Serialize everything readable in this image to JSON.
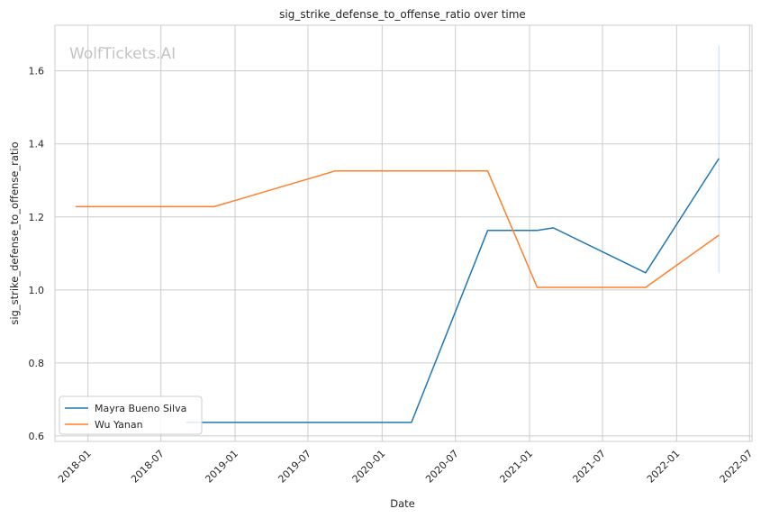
{
  "chart_data": {
    "type": "line",
    "title": "sig_strike_defense_to_offense_ratio over time",
    "xlabel": "Date",
    "ylabel": "sig_strike_defense_to_offense_ratio",
    "watermark": "WolfTickets.AI",
    "xlim": [
      "2017-10-11",
      "2022-07-07"
    ],
    "ylim": [
      0.585,
      1.725
    ],
    "x_ticks": [
      "2018-01",
      "2018-07",
      "2019-01",
      "2019-07",
      "2020-01",
      "2020-07",
      "2021-01",
      "2021-07",
      "2022-01",
      "2022-07"
    ],
    "y_ticks": [
      0.6,
      0.8,
      1.0,
      1.2,
      1.4,
      1.6
    ],
    "y_tick_labels": [
      "0.6",
      "0.8",
      "1.0",
      "1.2",
      "1.4",
      "1.6"
    ],
    "grid": true,
    "legend_position": "lower-left",
    "series": [
      {
        "name": "Mayra Bueno Silva",
        "color": "#1f77b4",
        "points": [
          [
            "2018-09-01",
            0.637
          ],
          [
            "2020-03-14",
            0.637
          ],
          [
            "2020-09-19",
            1.163
          ],
          [
            "2021-01-20",
            1.163
          ],
          [
            "2021-03-01",
            1.17
          ],
          [
            "2021-10-16",
            1.047
          ],
          [
            "2022-04-16",
            1.36
          ]
        ]
      },
      {
        "name": "Wu Yanan",
        "color": "#ff7f2a",
        "points": [
          [
            "2017-12-01",
            1.228
          ],
          [
            "2018-11-10",
            1.228
          ],
          [
            "2019-09-07",
            1.326
          ],
          [
            "2020-09-19",
            1.326
          ],
          [
            "2021-01-20",
            1.007
          ],
          [
            "2021-10-16",
            1.007
          ],
          [
            "2022-04-16",
            1.15
          ]
        ]
      }
    ],
    "error_bar": {
      "x": "2022-04-16",
      "low": 1.047,
      "high": 1.67,
      "color": "#1f77b4"
    }
  }
}
